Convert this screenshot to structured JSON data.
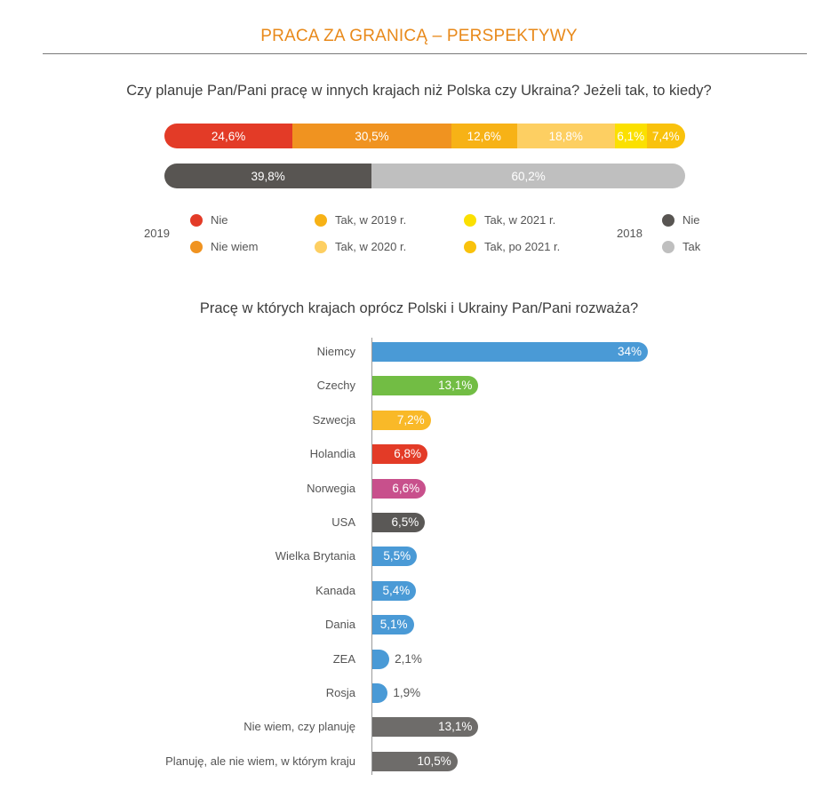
{
  "header": {
    "title": "PRACA ZA GRANICĄ – PERSPEKTYWY"
  },
  "chart_data": [
    {
      "type": "bar",
      "orientation": "horizontal-stacked",
      "title": "Czy planuje Pan/Pani pracę w innych krajach niż Polska czy Ukraina? Jeżeli tak, to kiedy?",
      "rows": [
        {
          "year": "2019",
          "segments": [
            {
              "name": "Nie",
              "value": 24.6,
              "label": "24,6%",
              "color": "#e33b27"
            },
            {
              "name": "Nie wiem",
              "value": 30.5,
              "label": "30,5%",
              "color": "#f09320"
            },
            {
              "name": "Tak, w 2019 r.",
              "value": 12.6,
              "label": "12,6%",
              "color": "#f7b216"
            },
            {
              "name": "Tak, w 2020 r.",
              "value": 18.8,
              "label": "18,8%",
              "color": "#fdcf62"
            },
            {
              "name": "Tak, w 2021 r.",
              "value": 6.1,
              "label": "6,1%",
              "color": "#fbe000"
            },
            {
              "name": "Tak, po 2021 r.",
              "value": 7.4,
              "label": "7,4%",
              "color": "#f9c20c"
            }
          ]
        },
        {
          "year": "2018",
          "segments": [
            {
              "name": "Nie",
              "value": 39.8,
              "label": "39,8%",
              "color": "#585552"
            },
            {
              "name": "Tak",
              "value": 60.2,
              "label": "60,2%",
              "color": "#bfbfbf"
            }
          ]
        }
      ]
    },
    {
      "type": "bar",
      "orientation": "horizontal",
      "title": "Pracę w których krajach oprócz Polski i Ukrainy Pan/Pani rozważa?",
      "xlim": [
        0,
        34
      ],
      "categories": [
        "Niemcy",
        "Czechy",
        "Szwecja",
        "Holandia",
        "Norwegia",
        "USA",
        "Wielka Brytania",
        "Kanada",
        "Dania",
        "ZEA",
        "Rosja",
        "Nie wiem, czy planuję",
        "Planuję, ale nie wiem, w którym kraju"
      ],
      "values": [
        34,
        13.1,
        7.2,
        6.8,
        6.6,
        6.5,
        5.5,
        5.4,
        5.1,
        2.1,
        1.9,
        13.1,
        10.5
      ],
      "labels": [
        "34%",
        "13,1%",
        "7,2%",
        "6,8%",
        "6,6%",
        "6,5%",
        "5,5%",
        "5,4%",
        "5,1%",
        "2,1%",
        "1,9%",
        "13,1%",
        "10,5%"
      ],
      "colors": [
        "#4a9ad6",
        "#72bd44",
        "#f9b928",
        "#e33b27",
        "#c8508c",
        "#5a5856",
        "#4a9ad6",
        "#4a9ad6",
        "#4a9ad6",
        "#4a9ad6",
        "#4a9ad6",
        "#6e6c6a",
        "#6e6c6a"
      ]
    }
  ]
}
